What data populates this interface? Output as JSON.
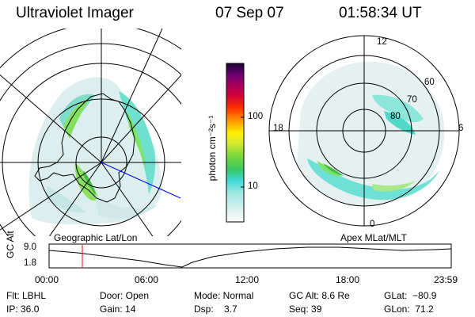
{
  "header": {
    "instrument": "Ultraviolet Imager",
    "date": "07 Sep 07",
    "time": "01:58:34 UT"
  },
  "colorbar": {
    "unit_label": "photon cm⁻²s⁻¹",
    "tick_labels": [
      "100",
      "10"
    ]
  },
  "left_panel": {
    "caption": "Geographic Lat/Lon"
  },
  "right_panel": {
    "caption": "Apex  MLat/MLT",
    "mlt_labels": {
      "top": "12",
      "left": "18",
      "right": "6",
      "bottom": "0"
    },
    "lat_labels": [
      "60",
      "70",
      "80"
    ]
  },
  "altitude_plot": {
    "ylabel": "GC Alt",
    "ytick_top": "9.0",
    "ytick_bottom": "1.8",
    "xtick_labels": [
      "00:00",
      "06:00",
      "12:00",
      "18:00",
      "23:59"
    ],
    "marker_time": "01:58"
  },
  "footer": {
    "filter": "Flt: LBHL",
    "ip": "IP: 36.0",
    "door": "Door: Open",
    "gain": "Gain: 14",
    "mode": "Mode: Normal",
    "dsp": "Dsp:    3.7",
    "gc_alt": "GC Alt: 8.6 Re",
    "seq": "Seq: 39",
    "glat": "GLat:  −80.9",
    "glon": "GLon:  71.2"
  },
  "colors": {
    "background": "#ffffff",
    "marker": "#ff0000",
    "projection_line": "#0000ff"
  }
}
